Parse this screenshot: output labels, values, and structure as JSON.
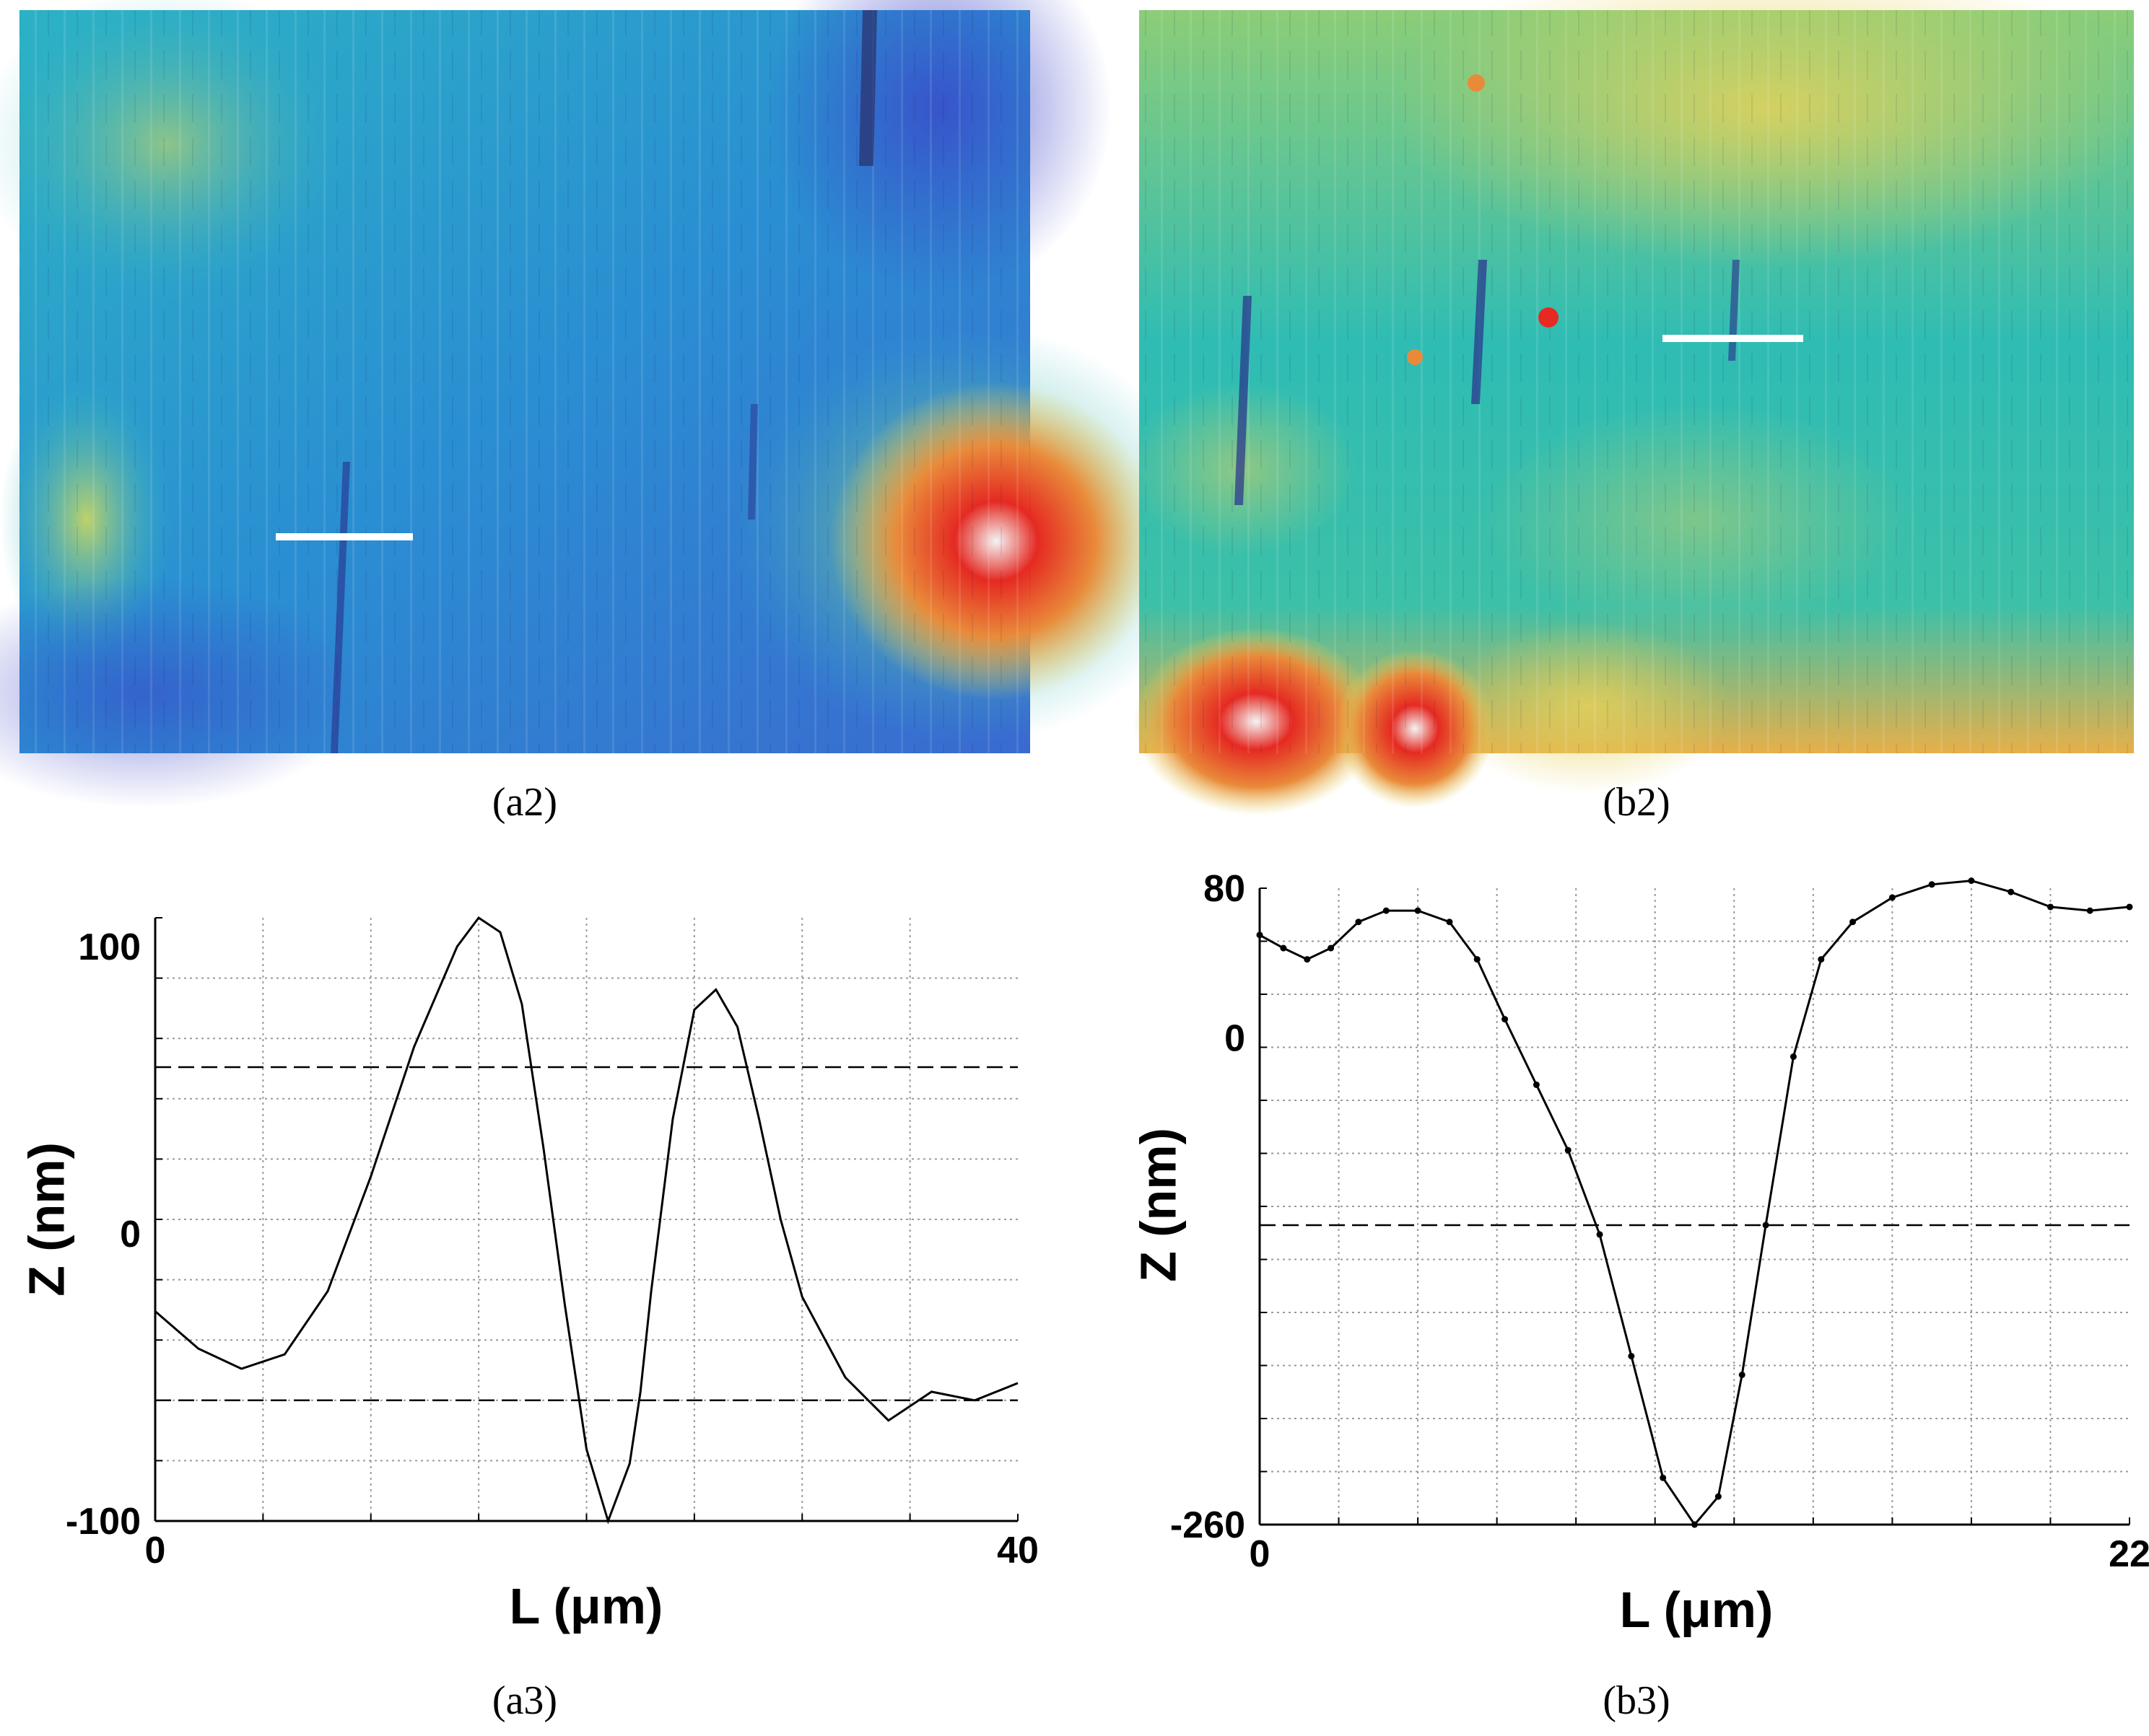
{
  "panels": {
    "a2": {
      "caption": "(a2)",
      "description": "AFM height map",
      "scale_bar_color": "#ffffff"
    },
    "b2": {
      "caption": "(b2)",
      "description": "AFM height map",
      "scale_bar_color": "#ffffff"
    }
  },
  "colors": {
    "afm_low": "#3b46c8",
    "afm_mid": "#27b4c8",
    "afm_high": "#e6d25a",
    "afm_peak": "#e52a22",
    "line": "#000000",
    "grid": "#9a9a9a"
  },
  "chart_data": [
    {
      "id": "a3",
      "type": "line",
      "caption": "(a3)",
      "title": "",
      "xlabel": "L (μm)",
      "ylabel": "Z (nm)",
      "xlim": [
        0,
        40
      ],
      "ylim": [
        -100,
        110
      ],
      "x_ticks": [
        0,
        40
      ],
      "x_tick_labels": [
        "0",
        "40"
      ],
      "y_ticks": [
        100,
        0,
        -100
      ],
      "y_tick_labels": [
        "100",
        "0",
        "-100"
      ],
      "grid": true,
      "markers": false,
      "reference_lines": [
        58,
        -58
      ],
      "series": [
        {
          "name": "profile",
          "x": [
            0,
            2,
            4,
            6,
            8,
            10,
            12,
            14,
            15,
            16,
            17,
            18,
            19,
            20,
            21,
            22,
            22.5,
            23,
            24,
            25,
            26,
            27,
            28,
            29,
            30,
            32,
            34,
            36,
            38,
            40
          ],
          "y": [
            -27,
            -40,
            -47,
            -42,
            -20,
            20,
            65,
            100,
            110,
            105,
            80,
            30,
            -25,
            -75,
            -100,
            -80,
            -55,
            -20,
            40,
            78,
            85,
            72,
            40,
            5,
            -22,
            -50,
            -65,
            -55,
            -58,
            -52
          ]
        }
      ]
    },
    {
      "id": "b3",
      "type": "line",
      "caption": "(b3)",
      "title": "",
      "xlabel": "L (μm)",
      "ylabel": "Z (nm)",
      "xlim": [
        0,
        22
      ],
      "ylim": [
        -260,
        80
      ],
      "x_ticks": [
        0,
        22
      ],
      "x_tick_labels": [
        "0",
        "22"
      ],
      "y_ticks": [
        80,
        0,
        -260
      ],
      "y_tick_labels": [
        "80",
        "0",
        "-260"
      ],
      "grid": true,
      "markers": true,
      "reference_lines": [
        -100
      ],
      "series": [
        {
          "name": "profile",
          "x": [
            0,
            0.6,
            1.2,
            1.8,
            2.5,
            3.2,
            4,
            4.8,
            5.5,
            6.2,
            7,
            7.8,
            8.6,
            9.4,
            10.2,
            11,
            11.6,
            12.2,
            12.8,
            13.5,
            14.2,
            15,
            16,
            17,
            18,
            19,
            20,
            21,
            22
          ],
          "y": [
            55,
            48,
            42,
            48,
            62,
            68,
            68,
            62,
            42,
            10,
            -25,
            -60,
            -105,
            -170,
            -235,
            -260,
            -245,
            -180,
            -100,
            -10,
            42,
            62,
            75,
            82,
            84,
            78,
            70,
            68,
            70
          ]
        }
      ]
    }
  ]
}
